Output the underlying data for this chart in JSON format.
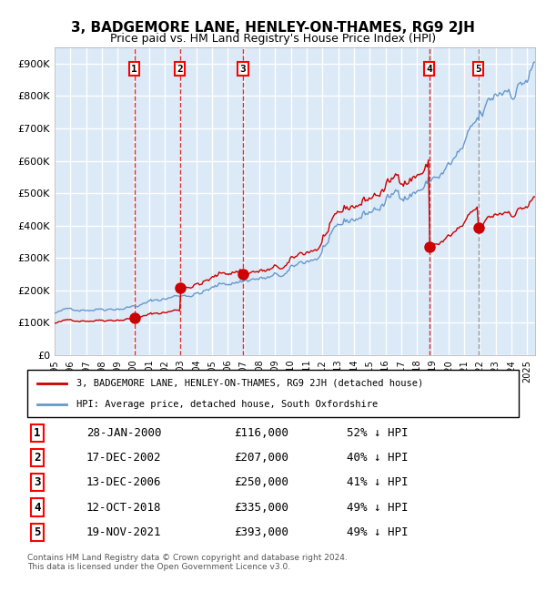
{
  "title": "3, BADGEMORE LANE, HENLEY-ON-THAMES, RG9 2JH",
  "subtitle": "Price paid vs. HM Land Registry's House Price Index (HPI)",
  "title_fontsize": 12,
  "subtitle_fontsize": 10,
  "bg_color": "#dce9f7",
  "plot_bg_color": "#dce9f7",
  "ylim": [
    0,
    950000
  ],
  "xlim_start": 1995.0,
  "xlim_end": 2025.5,
  "yticks": [
    0,
    100000,
    200000,
    300000,
    400000,
    500000,
    600000,
    700000,
    800000,
    900000
  ],
  "ytick_labels": [
    "£0",
    "£100K",
    "£200K",
    "£300K",
    "£400K",
    "£500K",
    "£600K",
    "£700K",
    "£800K",
    "£900K"
  ],
  "sale_dates": [
    2000.07,
    2002.96,
    2006.96,
    2018.79,
    2021.89
  ],
  "sale_prices": [
    116000,
    207000,
    250000,
    335000,
    393000
  ],
  "sale_labels": [
    "1",
    "2",
    "3",
    "4",
    "5"
  ],
  "hpi_color": "#6699cc",
  "price_color": "#cc0000",
  "sale_marker_color": "#cc0000",
  "vline_color": "#cc0000",
  "vline_style": "--",
  "legend_label_price": "3, BADGEMORE LANE, HENLEY-ON-THAMES, RG9 2JH (detached house)",
  "legend_label_hpi": "HPI: Average price, detached house, South Oxfordshire",
  "table_data": [
    [
      "1",
      "28-JAN-2000",
      "£116,000",
      "52% ↓ HPI"
    ],
    [
      "2",
      "17-DEC-2002",
      "£207,000",
      "40% ↓ HPI"
    ],
    [
      "3",
      "13-DEC-2006",
      "£250,000",
      "41% ↓ HPI"
    ],
    [
      "4",
      "12-OCT-2018",
      "£335,000",
      "49% ↓ HPI"
    ],
    [
      "5",
      "19-NOV-2021",
      "£393,000",
      "49% ↓ HPI"
    ]
  ],
  "footer": "Contains HM Land Registry data © Crown copyright and database right 2024.\nThis data is licensed under the Open Government Licence v3.0.",
  "grid_color": "#ffffff",
  "xtick_years": [
    1995,
    1996,
    1997,
    1998,
    1999,
    2000,
    2001,
    2002,
    2003,
    2004,
    2005,
    2006,
    2007,
    2008,
    2009,
    2010,
    2011,
    2012,
    2013,
    2014,
    2015,
    2016,
    2017,
    2018,
    2019,
    2020,
    2021,
    2022,
    2023,
    2024,
    2025
  ]
}
